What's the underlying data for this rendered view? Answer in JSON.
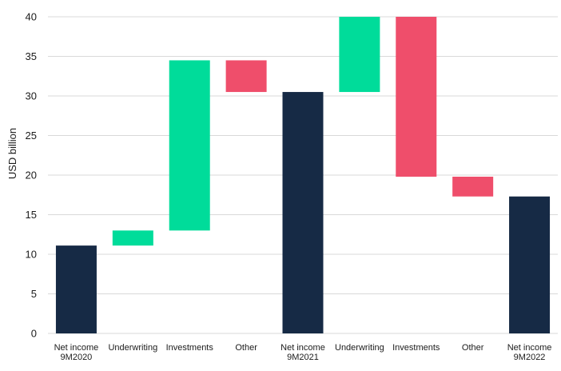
{
  "chart_data": {
    "type": "bar",
    "subtype": "waterfall",
    "ylabel": "USD billion",
    "xlabel": "",
    "ylim": [
      0,
      40
    ],
    "yticks": [
      0,
      5,
      10,
      15,
      20,
      25,
      30,
      35,
      40
    ],
    "grid": true,
    "colors": {
      "total": "#162a45",
      "increase": "#00dc9a",
      "decrease": "#ef4e6b",
      "grid": "#d9d9d9"
    },
    "bars": [
      {
        "label": [
          "Net income",
          "9M2020"
        ],
        "kind": "total",
        "start": 0,
        "end": 11.1
      },
      {
        "label": [
          "Underwriting"
        ],
        "kind": "increase",
        "start": 11.1,
        "end": 13.0
      },
      {
        "label": [
          "Investments"
        ],
        "kind": "increase",
        "start": 13.0,
        "end": 34.5
      },
      {
        "label": [
          "Other"
        ],
        "kind": "decrease",
        "start": 34.5,
        "end": 30.5
      },
      {
        "label": [
          "Net income",
          "9M2021"
        ],
        "kind": "total",
        "start": 0,
        "end": 30.5
      },
      {
        "label": [
          "Underwriting"
        ],
        "kind": "increase",
        "start": 30.5,
        "end": 40.0
      },
      {
        "label": [
          "Investments"
        ],
        "kind": "decrease",
        "start": 40.0,
        "end": 19.8
      },
      {
        "label": [
          "Other"
        ],
        "kind": "decrease",
        "start": 19.8,
        "end": 17.3
      },
      {
        "label": [
          "Net income",
          "9M2022"
        ],
        "kind": "total",
        "start": 0,
        "end": 17.3
      }
    ]
  }
}
